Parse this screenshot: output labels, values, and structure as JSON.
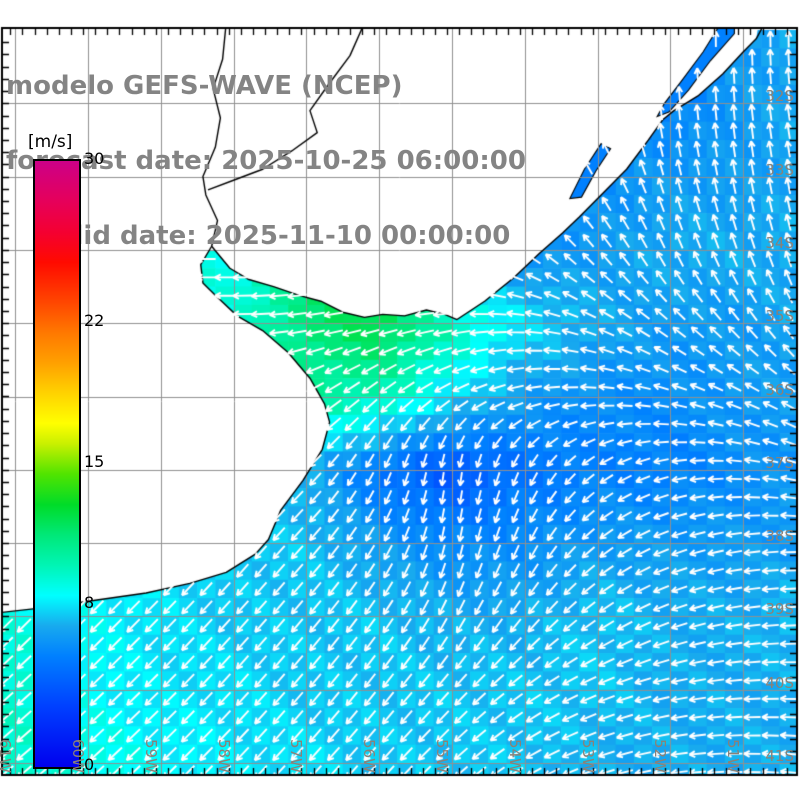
{
  "header": {
    "title": "modelo GEFS-WAVE (NCEP)",
    "forecast_line": "forecast date: 2025-10-25 06:00:00",
    "valid_line": "valid date: 2025-11-10 00:00:00"
  },
  "colorbar": {
    "unit_label": "[m/s]",
    "min": 0,
    "max": 30,
    "tick_labels": [
      "30",
      "22",
      "15",
      "8",
      "0"
    ],
    "tick_values": [
      30,
      22,
      15,
      8,
      0
    ],
    "stops": [
      [
        0,
        "#0000ee"
      ],
      [
        3,
        "#0040ff"
      ],
      [
        5.5,
        "#0080ff"
      ],
      [
        7,
        "#18aaee"
      ],
      [
        8.5,
        "#00ffff"
      ],
      [
        10,
        "#00f5b4"
      ],
      [
        11.5,
        "#00e878"
      ],
      [
        13,
        "#00dc28"
      ],
      [
        14.5,
        "#50e400"
      ],
      [
        16,
        "#c8f000"
      ],
      [
        17,
        "#ffff00"
      ],
      [
        18.5,
        "#ffd200"
      ],
      [
        20,
        "#ffa000"
      ],
      [
        21.5,
        "#ff7800"
      ],
      [
        23,
        "#ff4600"
      ],
      [
        25,
        "#ff0a00"
      ],
      [
        26.5,
        "#f40032"
      ],
      [
        28,
        "#e6005a"
      ],
      [
        30,
        "#cc0088"
      ]
    ]
  },
  "axes": {
    "lon_labels": [
      "61W",
      "60W",
      "59W",
      "58W",
      "57W",
      "56W",
      "55W",
      "54W",
      "53W",
      "52W",
      "51W"
    ],
    "lon_values": [
      61,
      60,
      59,
      58,
      57,
      56,
      55,
      54,
      53,
      52,
      51
    ],
    "lat_labels": [
      "32S",
      "33S",
      "34S",
      "35S",
      "36S",
      "37S",
      "38S",
      "39S",
      "40S",
      "41S"
    ],
    "lat_values": [
      32,
      33,
      34,
      35,
      36,
      37,
      38,
      39,
      40,
      41
    ]
  },
  "colors": {
    "grid": "#909090",
    "coast": "#000000",
    "border": "#000000",
    "title_text": "#848484",
    "axis_text": "#8a8178",
    "arrow": "#ffffff",
    "land": "#ffffff"
  },
  "chart_data": {
    "type": "heatmap",
    "subtype": "geo field + quiver",
    "title": "modelo GEFS-WAVE (NCEP)",
    "units": "m/s",
    "legend_position": "left colorbar",
    "colorbar_range": [
      0,
      30
    ],
    "lon_range_west_deg": [
      61.18,
      50.26
    ],
    "lat_range_south_deg": [
      31.0,
      41.17
    ],
    "lon_nodes_west_deg": [
      61,
      60,
      59,
      58,
      57,
      56,
      55,
      54,
      53,
      52,
      51,
      50
    ],
    "lat_nodes_south_deg": [
      31,
      32,
      33,
      34,
      35,
      36,
      37,
      38,
      39,
      40,
      41
    ],
    "speed_ms": [
      [
        null,
        null,
        null,
        null,
        null,
        null,
        null,
        null,
        null,
        5.5,
        6.5,
        7
      ],
      [
        null,
        null,
        null,
        null,
        null,
        null,
        null,
        null,
        null,
        5.5,
        6.5,
        7
      ],
      [
        null,
        null,
        null,
        null,
        null,
        null,
        null,
        null,
        6,
        6.5,
        6.5,
        7
      ],
      [
        null,
        null,
        null,
        null,
        null,
        null,
        5.5,
        6,
        6.5,
        7,
        7,
        7
      ],
      [
        null,
        null,
        null,
        9,
        11.5,
        12.5,
        10,
        8,
        7,
        6.5,
        6.5,
        7
      ],
      [
        null,
        null,
        null,
        null,
        10.5,
        10,
        8,
        6.5,
        6,
        6,
        6.5,
        6.5
      ],
      [
        null,
        null,
        null,
        null,
        7,
        5,
        3.8,
        5,
        5.5,
        5.5,
        6,
        6.5
      ],
      [
        null,
        null,
        null,
        null,
        7.5,
        6.5,
        5.8,
        6,
        6.5,
        6.5,
        6.5,
        6.5
      ],
      [
        9,
        8.5,
        8,
        7.5,
        7.5,
        7.5,
        7,
        7,
        7.5,
        7,
        7,
        7.5
      ],
      [
        9.5,
        8.5,
        8,
        8,
        7.5,
        7.5,
        7.5,
        7.5,
        7.5,
        7,
        7,
        7
      ],
      [
        9.5,
        9,
        8.5,
        8,
        8,
        7.5,
        7.5,
        7.5,
        7,
        7,
        7,
        7
      ]
    ],
    "dir_toward_deg": [
      [
        null,
        null,
        null,
        null,
        null,
        null,
        null,
        null,
        null,
        0,
        0,
        0
      ],
      [
        null,
        null,
        null,
        null,
        null,
        null,
        null,
        null,
        null,
        355,
        355,
        350
      ],
      [
        null,
        null,
        null,
        null,
        null,
        null,
        null,
        null,
        330,
        345,
        350,
        350
      ],
      [
        null,
        null,
        null,
        null,
        null,
        null,
        290,
        305,
        320,
        335,
        340,
        345
      ],
      [
        null,
        null,
        null,
        270,
        262,
        258,
        262,
        275,
        295,
        310,
        320,
        330
      ],
      [
        null,
        null,
        null,
        null,
        240,
        230,
        240,
        258,
        272,
        285,
        295,
        305
      ],
      [
        null,
        null,
        null,
        null,
        225,
        205,
        185,
        205,
        235,
        258,
        275,
        288
      ],
      [
        null,
        null,
        null,
        null,
        222,
        210,
        190,
        205,
        232,
        250,
        262,
        272
      ],
      [
        225,
        225,
        224,
        222,
        220,
        215,
        207,
        218,
        235,
        250,
        262,
        270
      ],
      [
        228,
        226,
        225,
        222,
        220,
        218,
        222,
        235,
        248,
        258,
        266,
        273
      ],
      [
        230,
        228,
        226,
        224,
        222,
        222,
        228,
        240,
        252,
        262,
        270,
        278
      ]
    ]
  },
  "geo": {
    "land_polygons": [
      [
        [
          50.7,
          30.4
        ],
        [
          50.82,
          31.12
        ],
        [
          51.0,
          31.3
        ],
        [
          51.28,
          31.6
        ],
        [
          51.62,
          31.9
        ],
        [
          51.95,
          32.1
        ],
        [
          52.1,
          32.22
        ],
        [
          52.3,
          32.5
        ],
        [
          52.6,
          32.9
        ],
        [
          52.95,
          33.25
        ],
        [
          53.25,
          33.55
        ],
        [
          53.48,
          33.77
        ],
        [
          53.8,
          34.05
        ],
        [
          54.15,
          34.38
        ],
        [
          54.55,
          34.7
        ],
        [
          54.93,
          34.95
        ],
        [
          55.1,
          34.88
        ],
        [
          55.35,
          34.82
        ],
        [
          55.65,
          34.9
        ],
        [
          55.95,
          34.88
        ],
        [
          56.2,
          34.92
        ],
        [
          56.5,
          34.85
        ],
        [
          56.8,
          34.7
        ],
        [
          57.1,
          34.62
        ],
        [
          57.45,
          34.5
        ],
        [
          57.8,
          34.4
        ],
        [
          58.05,
          34.25
        ],
        [
          58.3,
          33.95
        ],
        [
          58.22,
          33.6
        ],
        [
          58.38,
          33.25
        ],
        [
          58.42,
          33.0
        ],
        [
          58.25,
          32.6
        ],
        [
          58.18,
          32.2
        ],
        [
          58.28,
          31.8
        ],
        [
          58.15,
          31.4
        ],
        [
          58.1,
          30.4
        ]
      ],
      [
        [
          58.1,
          30.4
        ],
        [
          58.15,
          31.4
        ],
        [
          58.28,
          31.8
        ],
        [
          58.18,
          32.2
        ],
        [
          58.25,
          32.6
        ],
        [
          58.42,
          33.0
        ],
        [
          58.38,
          33.25
        ],
        [
          58.22,
          33.6
        ],
        [
          58.3,
          33.95
        ],
        [
          58.45,
          34.2
        ],
        [
          58.42,
          34.45
        ],
        [
          58.25,
          34.62
        ],
        [
          57.95,
          34.9
        ],
        [
          57.6,
          35.1
        ],
        [
          57.25,
          35.4
        ],
        [
          56.95,
          35.75
        ],
        [
          56.75,
          36.1
        ],
        [
          56.68,
          36.35
        ],
        [
          56.78,
          36.72
        ],
        [
          57.05,
          37.15
        ],
        [
          57.35,
          37.55
        ],
        [
          57.52,
          37.95
        ],
        [
          57.7,
          38.15
        ],
        [
          58.1,
          38.4
        ],
        [
          58.6,
          38.55
        ],
        [
          59.2,
          38.68
        ],
        [
          59.9,
          38.78
        ],
        [
          60.6,
          38.88
        ],
        [
          61.4,
          38.97
        ],
        [
          61.4,
          30.4
        ]
      ]
    ],
    "coast_strokes": [
      [
        [
          50.7,
          30.9
        ],
        [
          50.82,
          31.12
        ],
        [
          51.0,
          31.3
        ],
        [
          51.28,
          31.6
        ],
        [
          51.62,
          31.9
        ],
        [
          51.95,
          32.1
        ],
        [
          52.1,
          32.22
        ],
        [
          52.3,
          32.5
        ],
        [
          52.6,
          32.9
        ],
        [
          52.95,
          33.25
        ],
        [
          53.25,
          33.55
        ],
        [
          53.48,
          33.77
        ],
        [
          53.8,
          34.05
        ],
        [
          54.15,
          34.38
        ],
        [
          54.55,
          34.7
        ],
        [
          54.93,
          34.95
        ],
        [
          55.1,
          34.88
        ],
        [
          55.35,
          34.82
        ],
        [
          55.65,
          34.9
        ],
        [
          55.95,
          34.88
        ],
        [
          56.2,
          34.92
        ],
        [
          56.5,
          34.85
        ],
        [
          56.8,
          34.7
        ],
        [
          57.1,
          34.62
        ],
        [
          57.45,
          34.5
        ],
        [
          57.8,
          34.4
        ],
        [
          58.05,
          34.25
        ],
        [
          58.3,
          33.95
        ],
        [
          58.22,
          33.6
        ],
        [
          58.38,
          33.25
        ],
        [
          58.42,
          33.0
        ],
        [
          58.25,
          32.6
        ],
        [
          58.18,
          32.2
        ],
        [
          58.28,
          31.8
        ],
        [
          58.15,
          31.4
        ],
        [
          58.1,
          30.9
        ]
      ],
      [
        [
          58.3,
          33.95
        ],
        [
          58.45,
          34.2
        ],
        [
          58.42,
          34.45
        ],
        [
          58.25,
          34.62
        ],
        [
          57.95,
          34.9
        ],
        [
          57.6,
          35.1
        ],
        [
          57.25,
          35.4
        ],
        [
          56.95,
          35.75
        ],
        [
          56.75,
          36.1
        ],
        [
          56.68,
          36.35
        ],
        [
          56.78,
          36.72
        ],
        [
          57.05,
          37.15
        ],
        [
          57.35,
          37.55
        ],
        [
          57.52,
          37.95
        ],
        [
          57.7,
          38.15
        ],
        [
          58.1,
          38.4
        ],
        [
          58.6,
          38.55
        ],
        [
          59.2,
          38.68
        ],
        [
          59.9,
          38.78
        ],
        [
          60.6,
          38.88
        ],
        [
          61.4,
          38.97
        ]
      ],
      [
        [
          56.2,
          30.9
        ],
        [
          56.4,
          31.35
        ],
        [
          56.7,
          31.75
        ],
        [
          56.95,
          32.1
        ],
        [
          56.85,
          32.4
        ],
        [
          57.2,
          32.65
        ],
        [
          57.6,
          32.9
        ],
        [
          58.0,
          33.05
        ],
        [
          58.35,
          33.18
        ]
      ]
    ],
    "lagoons": [
      [
        [
          51.3,
          30.9
        ],
        [
          51.55,
          31.3
        ],
        [
          51.85,
          31.7
        ],
        [
          52.08,
          32.0
        ],
        [
          52.18,
          32.18
        ],
        [
          52.02,
          32.12
        ],
        [
          51.75,
          31.82
        ],
        [
          51.45,
          31.42
        ],
        [
          51.12,
          31.05
        ],
        [
          51.12,
          30.9
        ]
      ],
      [
        [
          52.95,
          32.55
        ],
        [
          53.18,
          32.9
        ],
        [
          53.38,
          33.3
        ],
        [
          53.22,
          33.28
        ],
        [
          53.02,
          32.92
        ],
        [
          52.82,
          32.62
        ]
      ]
    ],
    "lagoon_fill_value_ms": 5.5
  }
}
